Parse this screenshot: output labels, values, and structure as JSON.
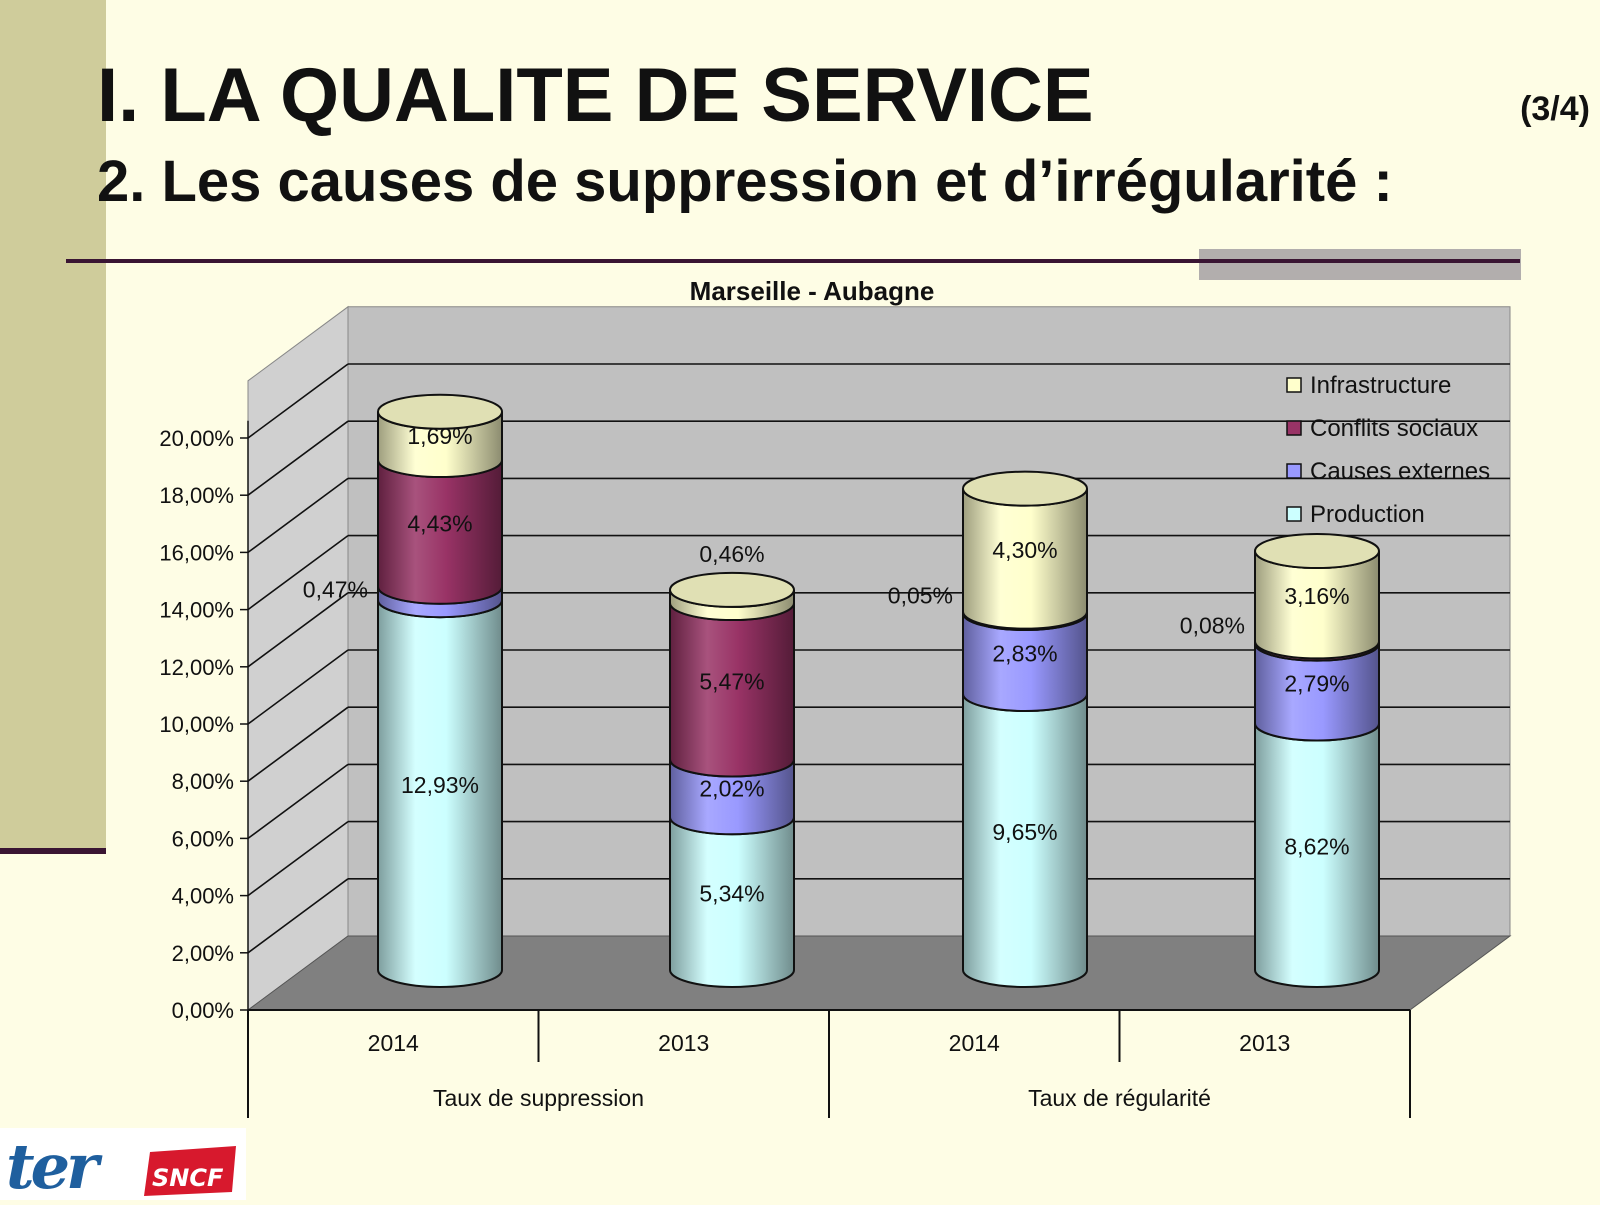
{
  "slide": {
    "title": "I. LA QUALITE DE SERVICE",
    "counter": "(3/4)",
    "subtitle": "2. Les causes de suppression et d’irrégularité :"
  },
  "logos": {
    "ter": "ter",
    "sncf": "SNCF"
  },
  "chart_data": {
    "type": "bar",
    "stacked": true,
    "style": "3d-cylinder",
    "title": "Marseille - Aubagne",
    "categories": [
      "2014",
      "2013",
      "2014",
      "2013"
    ],
    "groups": [
      {
        "label": "Taux de suppression",
        "categories": [
          0,
          1
        ]
      },
      {
        "label": "Taux de régularité",
        "categories": [
          2,
          3
        ]
      }
    ],
    "series": [
      {
        "name": "Production",
        "color": "#ccffff",
        "values": [
          12.93,
          5.34,
          9.65,
          8.62
        ],
        "labels": [
          "12,93%",
          "5,34%",
          "9,65%",
          "8,62%"
        ]
      },
      {
        "name": "Causes externes",
        "color": "#9999ff",
        "values": [
          0.47,
          2.02,
          2.83,
          2.79
        ],
        "labels": [
          "0,47%",
          "2,02%",
          "2,83%",
          "2,79%"
        ]
      },
      {
        "name": "Conflits sociaux",
        "color": "#993366",
        "values": [
          4.43,
          5.47,
          0.05,
          0.08
        ],
        "labels": [
          "4,43%",
          "5,47%",
          "0,05%",
          "0,08%"
        ]
      },
      {
        "name": "Infrastructure",
        "color": "#ffffcc",
        "values": [
          1.69,
          0.46,
          4.3,
          3.16
        ],
        "labels": [
          "1,69%",
          "0,46%",
          "4,30%",
          "3,16%"
        ]
      }
    ],
    "legend_order": [
      "Infrastructure",
      "Conflits sociaux",
      "Causes externes",
      "Production"
    ],
    "yticks": [
      "0,00%",
      "2,00%",
      "4,00%",
      "6,00%",
      "8,00%",
      "10,00%",
      "12,00%",
      "14,00%",
      "16,00%",
      "18,00%",
      "20,00%"
    ],
    "ylim": [
      0,
      22
    ],
    "grid": true,
    "legend": "top-right"
  }
}
